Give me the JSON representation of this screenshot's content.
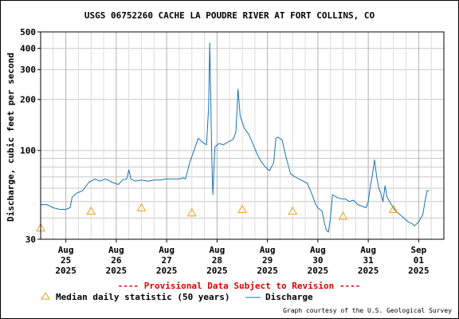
{
  "chart_data": {
    "type": "line",
    "title": "USGS 06752260 CACHE LA POUDRE RIVER AT FORT COLLINS, CO",
    "ylabel": "Discharge, cubic feet per second",
    "y_scale": "log",
    "ylim": [
      30,
      500
    ],
    "y_ticks": [
      30,
      100,
      200,
      300,
      400,
      500
    ],
    "grid": true,
    "x_range": [
      "2025-08-24T12:00",
      "2025-09-01T12:00"
    ],
    "x_ticks": [
      {
        "at": "2025-08-25T00:00",
        "line1": "Aug",
        "line2": "25",
        "line3": "2025"
      },
      {
        "at": "2025-08-26T00:00",
        "line1": "Aug",
        "line2": "26",
        "line3": "2025"
      },
      {
        "at": "2025-08-27T00:00",
        "line1": "Aug",
        "line2": "27",
        "line3": "2025"
      },
      {
        "at": "2025-08-28T00:00",
        "line1": "Aug",
        "line2": "28",
        "line3": "2025"
      },
      {
        "at": "2025-08-29T00:00",
        "line1": "Aug",
        "line2": "29",
        "line3": "2025"
      },
      {
        "at": "2025-08-30T00:00",
        "line1": "Aug",
        "line2": "30",
        "line3": "2025"
      },
      {
        "at": "2025-08-31T00:00",
        "line1": "Aug",
        "line2": "31",
        "line3": "2025"
      },
      {
        "at": "2025-09-01T00:00",
        "line1": "Sep",
        "line2": "01",
        "line3": "2025"
      }
    ],
    "series": [
      {
        "name": "Discharge",
        "color": "#1a73b5",
        "points": [
          [
            "2025-08-24T12:00",
            48
          ],
          [
            "2025-08-24T15:00",
            48
          ],
          [
            "2025-08-24T18:00",
            46
          ],
          [
            "2025-08-24T21:00",
            45
          ],
          [
            "2025-08-25T00:00",
            45
          ],
          [
            "2025-08-25T02:00",
            46
          ],
          [
            "2025-08-25T03:00",
            53
          ],
          [
            "2025-08-25T05:00",
            56
          ],
          [
            "2025-08-25T08:00",
            58
          ],
          [
            "2025-08-25T11:00",
            65
          ],
          [
            "2025-08-25T14:00",
            68
          ],
          [
            "2025-08-25T16:00",
            66
          ],
          [
            "2025-08-25T19:00",
            68
          ],
          [
            "2025-08-25T22:00",
            65
          ],
          [
            "2025-08-26T01:00",
            63
          ],
          [
            "2025-08-26T03:00",
            67
          ],
          [
            "2025-08-26T05:00",
            68
          ],
          [
            "2025-08-26T06:00",
            77
          ],
          [
            "2025-08-26T07:00",
            68
          ],
          [
            "2025-08-26T09:00",
            66
          ],
          [
            "2025-08-26T12:00",
            67
          ],
          [
            "2025-08-26T15:00",
            66
          ],
          [
            "2025-08-26T18:00",
            67
          ],
          [
            "2025-08-26T21:00",
            67
          ],
          [
            "2025-08-27T00:00",
            68
          ],
          [
            "2025-08-27T03:00",
            68
          ],
          [
            "2025-08-27T06:00",
            68
          ],
          [
            "2025-08-27T08:00",
            69
          ],
          [
            "2025-08-27T09:00",
            68
          ],
          [
            "2025-08-27T11:00",
            85
          ],
          [
            "2025-08-27T13:00",
            100
          ],
          [
            "2025-08-27T15:00",
            118
          ],
          [
            "2025-08-27T17:00",
            112
          ],
          [
            "2025-08-27T19:00",
            108
          ],
          [
            "2025-08-27T20:00",
            180
          ],
          [
            "2025-08-27T20:30",
            430
          ],
          [
            "2025-08-27T21:00",
            200
          ],
          [
            "2025-08-27T21:30",
            90
          ],
          [
            "2025-08-27T22:00",
            55
          ],
          [
            "2025-08-27T23:00",
            105
          ],
          [
            "2025-08-28T01:00",
            110
          ],
          [
            "2025-08-28T03:00",
            108
          ],
          [
            "2025-08-28T05:00",
            112
          ],
          [
            "2025-08-28T07:00",
            115
          ],
          [
            "2025-08-28T08:00",
            118
          ],
          [
            "2025-08-28T09:00",
            130
          ],
          [
            "2025-08-28T10:00",
            230
          ],
          [
            "2025-08-28T11:00",
            160
          ],
          [
            "2025-08-28T13:00",
            135
          ],
          [
            "2025-08-28T15:00",
            125
          ],
          [
            "2025-08-28T17:00",
            110
          ],
          [
            "2025-08-28T19:00",
            96
          ],
          [
            "2025-08-28T21:00",
            86
          ],
          [
            "2025-08-28T23:00",
            80
          ],
          [
            "2025-08-29T01:00",
            76
          ],
          [
            "2025-08-29T03:00",
            85
          ],
          [
            "2025-08-29T04:00",
            118
          ],
          [
            "2025-08-29T05:00",
            120
          ],
          [
            "2025-08-29T07:00",
            115
          ],
          [
            "2025-08-29T09:00",
            90
          ],
          [
            "2025-08-29T11:00",
            73
          ],
          [
            "2025-08-29T13:00",
            70
          ],
          [
            "2025-08-29T15:00",
            68
          ],
          [
            "2025-08-29T17:00",
            66
          ],
          [
            "2025-08-29T19:00",
            64
          ],
          [
            "2025-08-29T21:00",
            56
          ],
          [
            "2025-08-29T23:00",
            48
          ],
          [
            "2025-08-30T00:00",
            46
          ],
          [
            "2025-08-30T02:00",
            44
          ],
          [
            "2025-08-30T03:00",
            38
          ],
          [
            "2025-08-30T04:00",
            34
          ],
          [
            "2025-08-30T05:00",
            33
          ],
          [
            "2025-08-30T06:00",
            40
          ],
          [
            "2025-08-30T07:00",
            55
          ],
          [
            "2025-08-30T09:00",
            53
          ],
          [
            "2025-08-30T11:00",
            52
          ],
          [
            "2025-08-30T13:00",
            52
          ],
          [
            "2025-08-30T15:00",
            50
          ],
          [
            "2025-08-30T17:00",
            51
          ],
          [
            "2025-08-30T19:00",
            48
          ],
          [
            "2025-08-30T21:00",
            47
          ],
          [
            "2025-08-30T23:00",
            46
          ],
          [
            "2025-08-31T00:00",
            50
          ],
          [
            "2025-08-31T01:00",
            62
          ],
          [
            "2025-08-31T02:00",
            72
          ],
          [
            "2025-08-31T03:00",
            88
          ],
          [
            "2025-08-31T04:00",
            70
          ],
          [
            "2025-08-31T05:00",
            60
          ],
          [
            "2025-08-31T06:00",
            56
          ],
          [
            "2025-08-31T07:00",
            50
          ],
          [
            "2025-08-31T08:00",
            62
          ],
          [
            "2025-08-31T09:00",
            53
          ],
          [
            "2025-08-31T11:00",
            48
          ],
          [
            "2025-08-31T13:00",
            44
          ],
          [
            "2025-08-31T16:00",
            41
          ],
          [
            "2025-08-31T19:00",
            38
          ],
          [
            "2025-08-31T21:00",
            37
          ],
          [
            "2025-08-31T22:00",
            36
          ],
          [
            "2025-09-01T00:00",
            38
          ],
          [
            "2025-09-01T02:00",
            42
          ],
          [
            "2025-09-01T03:00",
            50
          ],
          [
            "2025-09-01T04:00",
            58
          ],
          [
            "2025-09-01T05:00",
            58
          ]
        ]
      },
      {
        "name": "Median daily statistic (50 years)",
        "color": "#e6a21f",
        "marker": "triangle",
        "points": [
          [
            "2025-08-24T12:00",
            35
          ],
          [
            "2025-08-25T12:00",
            44
          ],
          [
            "2025-08-26T12:00",
            46
          ],
          [
            "2025-08-27T12:00",
            43
          ],
          [
            "2025-08-28T12:00",
            45
          ],
          [
            "2025-08-29T12:00",
            44
          ],
          [
            "2025-08-30T12:00",
            41
          ],
          [
            "2025-08-31T12:00",
            45
          ]
        ]
      }
    ],
    "provisional_note": "---- Provisional Data Subject to Revision ----",
    "credit": "Graph courtesy of the U.S. Geological Survey"
  }
}
